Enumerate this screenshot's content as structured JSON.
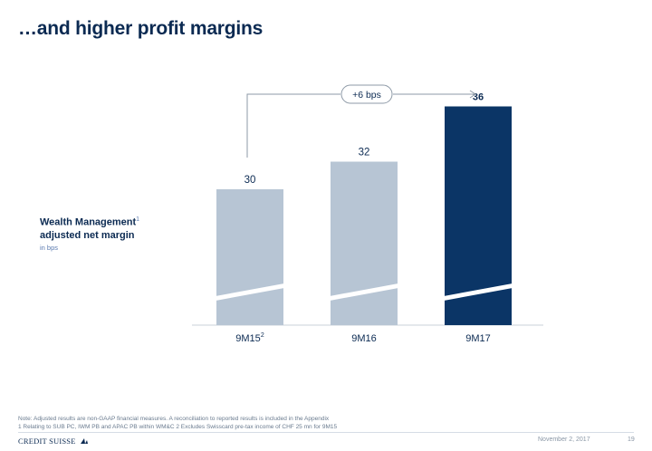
{
  "page": {
    "title": "…and higher profit margins",
    "metric_title_line1": "Wealth Management",
    "metric_title_sup": "1",
    "metric_title_line2": "adjusted net margin",
    "metric_unit": "in bps",
    "note_line1": "Note: Adjusted results are non-GAAP financial measures. A reconciliation to reported results is included in the Appendix",
    "note_line2": "1 Relating to SUB PC, IWM PB and APAC PB within WM&C    2 Excludes Swisscard pre-tax income of CHF 25 mn for 9M15",
    "logo_text": "CREDIT SUISSE",
    "date": "November 2, 2017",
    "page_number": "19"
  },
  "colors": {
    "bar_light": "#b7c5d4",
    "bar_highlight": "#0b3566",
    "text": "#0b2a52",
    "bracket": "#8e9aa7"
  },
  "chart_data": {
    "type": "bar",
    "categories": [
      "9M15",
      "9M16",
      "9M17"
    ],
    "category_superscripts": [
      "2",
      "",
      ""
    ],
    "values": [
      30,
      32,
      36
    ],
    "value_labels": [
      "30",
      "32",
      "36"
    ],
    "highlight_index": 2,
    "axis_break": true,
    "annotation": "+6 bps",
    "annotation_from": "9M15",
    "annotation_to": "9M17",
    "ylabel": "in bps"
  }
}
